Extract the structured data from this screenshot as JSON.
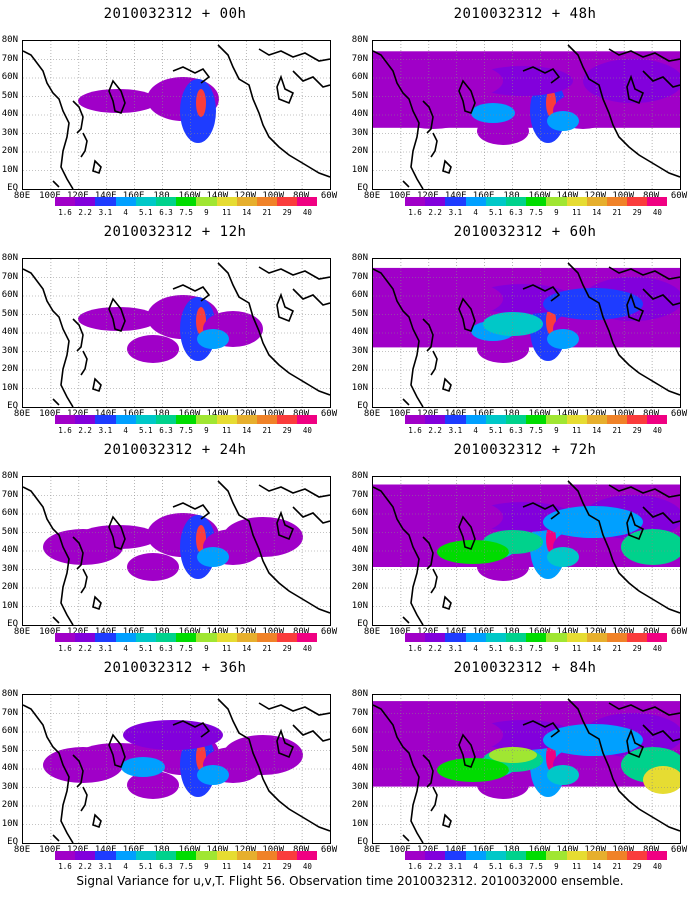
{
  "footer": "Signal Variance for u,v,T. Flight 56. Observation time 2010032312. 2010032000 ensemble.",
  "colorbar": {
    "labels": [
      "1.6",
      "2.2",
      "3.1",
      "4",
      "5.1",
      "6.3",
      "7.5",
      "9",
      "11",
      "14",
      "21",
      "29",
      "40"
    ],
    "colors": [
      "#a000c8",
      "#8200dc",
      "#1e3cff",
      "#00a0ff",
      "#00c8c8",
      "#00d28c",
      "#00dc00",
      "#a0e632",
      "#e6dc32",
      "#e6af2d",
      "#f08228",
      "#fa3c3c",
      "#f00082"
    ]
  },
  "axes": {
    "y_labels": [
      "80N",
      "70N",
      "60N",
      "50N",
      "40N",
      "30N",
      "20N",
      "10N",
      "EQ"
    ],
    "x_labels": [
      "80E",
      "100E",
      "120E",
      "140E",
      "160E",
      "180",
      "160W",
      "140W",
      "120W",
      "100W",
      "80W",
      "60W"
    ]
  },
  "chart_data": [
    {
      "type": "heatmap",
      "title": "2010032312 + 00h",
      "lead_hours": 0,
      "intensity": 0.12,
      "colorbar_labels": [
        "1.6",
        "2.2",
        "3.1",
        "4",
        "5.1",
        "6.3",
        "7.5",
        "9",
        "11",
        "14",
        "21",
        "29",
        "40"
      ]
    },
    {
      "type": "heatmap",
      "title": "2010032312 + 12h",
      "lead_hours": 12,
      "intensity": 0.25,
      "colorbar_labels": [
        "1.6",
        "2.2",
        "3.1",
        "4",
        "5.1",
        "6.3",
        "7.5",
        "9",
        "11",
        "14",
        "21",
        "29",
        "40"
      ]
    },
    {
      "type": "heatmap",
      "title": "2010032312 + 24h",
      "lead_hours": 24,
      "intensity": 0.35,
      "colorbar_labels": [
        "1.6",
        "2.2",
        "3.1",
        "4",
        "5.1",
        "6.3",
        "7.5",
        "9",
        "11",
        "14",
        "21",
        "29",
        "40"
      ]
    },
    {
      "type": "heatmap",
      "title": "2010032312 + 36h",
      "lead_hours": 36,
      "intensity": 0.45,
      "colorbar_labels": [
        "1.6",
        "2.2",
        "3.1",
        "4",
        "5.1",
        "6.3",
        "7.5",
        "9",
        "11",
        "14",
        "21",
        "29",
        "40"
      ]
    },
    {
      "type": "heatmap",
      "title": "2010032312 + 48h",
      "lead_hours": 48,
      "intensity": 0.55,
      "colorbar_labels": [
        "1.6",
        "2.2",
        "3.1",
        "4",
        "5.1",
        "6.3",
        "7.5",
        "9",
        "11",
        "14",
        "21",
        "29",
        "40"
      ]
    },
    {
      "type": "heatmap",
      "title": "2010032312 + 60h",
      "lead_hours": 60,
      "intensity": 0.65,
      "colorbar_labels": [
        "1.6",
        "2.2",
        "3.1",
        "4",
        "5.1",
        "6.3",
        "7.5",
        "9",
        "11",
        "14",
        "21",
        "29",
        "40"
      ]
    },
    {
      "type": "heatmap",
      "title": "2010032312 + 72h",
      "lead_hours": 72,
      "intensity": 0.75,
      "colorbar_labels": [
        "1.6",
        "2.2",
        "3.1",
        "4",
        "5.1",
        "6.3",
        "7.5",
        "9",
        "11",
        "14",
        "21",
        "29",
        "40"
      ]
    },
    {
      "type": "heatmap",
      "title": "2010032312 + 84h",
      "lead_hours": 84,
      "intensity": 0.85,
      "colorbar_labels": [
        "1.6",
        "2.2",
        "3.1",
        "4",
        "5.1",
        "6.3",
        "7.5",
        "9",
        "11",
        "14",
        "21",
        "29",
        "40"
      ]
    }
  ]
}
